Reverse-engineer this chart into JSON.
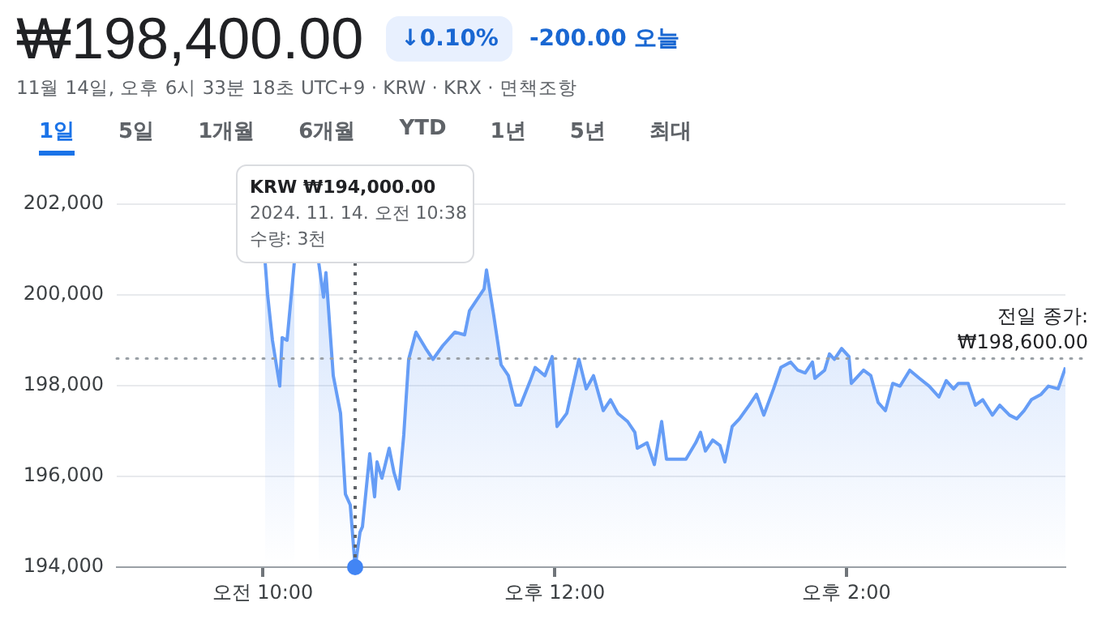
{
  "chart_data": {
    "type": "area",
    "title": "₩198,400.00",
    "subtitle": "11월 14일, 오후 6시 33분 18초 UTC+9 · KRW · KRX · 면책조항",
    "annotations": [
      "↓0.10%",
      "-200.00 오늘",
      "1일",
      "5일",
      "1개월",
      "6개월",
      "YTD",
      "1년",
      "5년",
      "최대",
      {
        "text": "KRW ₩194,000.00\n2024. 11. 14. 오전 10:38\n수량: 3천",
        "x": "2024-11-14T10:38",
        "y": 194000
      }
    ],
    "x": [
      "2024-11-14T10:01",
      "2024-11-14T10:02",
      "2024-11-14T10:04",
      "2024-11-14T10:07",
      "2024-11-14T10:08",
      "2024-11-14T10:10",
      "2024-11-14T10:12",
      "2024-11-14T10:13",
      "2024-11-14T10:18",
      "2024-11-14T10:23",
      "2024-11-14T10:25",
      "2024-11-14T10:26",
      "2024-11-14T10:29",
      "2024-11-14T10:32",
      "2024-11-14T10:34",
      "2024-11-14T10:36",
      "2024-11-14T10:38",
      "2024-11-14T10:40",
      "2024-11-14T10:41",
      "2024-11-14T10:44",
      "2024-11-14T10:46",
      "2024-11-14T10:47",
      "2024-11-14T10:49",
      "2024-11-14T10:52",
      "2024-11-14T10:54",
      "2024-11-14T10:56",
      "2024-11-14T10:58",
      "2024-11-14T11:00",
      "2024-11-14T11:03",
      "2024-11-14T11:07",
      "2024-11-14T11:10",
      "2024-11-14T11:14",
      "2024-11-14T11:19",
      "2024-11-14T11:23",
      "2024-11-14T11:25",
      "2024-11-14T11:28",
      "2024-11-14T11:31",
      "2024-11-14T11:32",
      "2024-11-14T11:35",
      "2024-11-14T11:38",
      "2024-11-14T11:41",
      "2024-11-14T11:44",
      "2024-11-14T11:46",
      "2024-11-14T11:50",
      "2024-11-14T11:52",
      "2024-11-14T11:56",
      "2024-11-14T11:59",
      "2024-11-14T12:01",
      "2024-11-14T12:05",
      "2024-11-14T12:10",
      "2024-11-14T12:13",
      "2024-11-14T12:16",
      "2024-11-14T12:20",
      "2024-11-14T12:23",
      "2024-11-14T12:26",
      "2024-11-14T12:30",
      "2024-11-14T12:33",
      "2024-11-14T12:34",
      "2024-11-14T12:38",
      "2024-11-14T12:41",
      "2024-11-14T12:44",
      "2024-11-14T12:46",
      "2024-11-14T12:50",
      "2024-11-14T12:54",
      "2024-11-14T12:58",
      "2024-11-14T13:00",
      "2024-11-14T13:02",
      "2024-11-14T13:05",
      "2024-11-14T13:08",
      "2024-11-14T13:10",
      "2024-11-14T13:13",
      "2024-11-14T13:16",
      "2024-11-14T13:20",
      "2024-11-14T13:23",
      "2024-11-14T13:26",
      "2024-11-14T13:30",
      "2024-11-14T13:33",
      "2024-11-14T13:37",
      "2024-11-14T13:40",
      "2024-11-14T13:43",
      "2024-11-14T13:46",
      "2024-11-14T13:47",
      "2024-11-14T13:51",
      "2024-11-14T13:53",
      "2024-11-14T13:55",
      "2024-11-14T13:58",
      "2024-11-14T14:01",
      "2024-11-14T14:02",
      "2024-11-14T14:07",
      "2024-11-14T14:10",
      "2024-11-14T14:13",
      "2024-11-14T14:16",
      "2024-11-14T14:19",
      "2024-11-14T14:22",
      "2024-11-14T14:26",
      "2024-11-14T14:30",
      "2024-11-14T14:34",
      "2024-11-14T14:38",
      "2024-11-14T14:41",
      "2024-11-14T14:44",
      "2024-11-14T14:46",
      "2024-11-14T14:50",
      "2024-11-14T14:53",
      "2024-11-14T14:56",
      "2024-11-14T15:00",
      "2024-11-14T15:03",
      "2024-11-14T15:07",
      "2024-11-14T15:10",
      "2024-11-14T15:13",
      "2024-11-14T15:16",
      "2024-11-14T15:20",
      "2024-11-14T15:23",
      "2024-11-14T15:27",
      "2024-11-14T15:30"
    ],
    "series": [
      {
        "color": "#669df6",
        "values": [
          200720,
          200010,
          199000,
          197990,
          199060,
          199000,
          200130,
          200720,
          null,
          200720,
          199950,
          200490,
          198220,
          197390,
          195610,
          195370,
          194000,
          194770,
          194890,
          196500,
          195550,
          196320,
          195960,
          196620,
          196080,
          195720,
          196920,
          198580,
          199180,
          198820,
          198580,
          198880,
          199180,
          199120,
          199650,
          199890,
          200130,
          200550,
          199540,
          198460,
          198220,
          197570,
          197570,
          198110,
          198400,
          198220,
          198640,
          197100,
          197390,
          198580,
          197930,
          198220,
          197450,
          197690,
          197390,
          197210,
          196970,
          196620,
          196740,
          196260,
          197210,
          196380,
          196380,
          196380,
          196740,
          196970,
          196560,
          196800,
          196680,
          196320,
          197100,
          197270,
          197570,
          197810,
          197350,
          197930,
          198400,
          198520,
          198340,
          198280,
          198520,
          198160,
          198340,
          198700,
          198580,
          198820,
          198640,
          198050,
          198340,
          198220,
          197630,
          197450,
          198050,
          197990,
          198340,
          198160,
          197990,
          197750,
          198110,
          197930,
          198050,
          198050,
          197570,
          197690,
          197350,
          197570,
          197350,
          197270,
          197450,
          197690,
          197810,
          197990,
          197930,
          198400
        ]
      }
    ],
    "xlim": [
      "2024-11-14T09:00",
      "2024-11-14T15:30"
    ],
    "ylim": [
      194000,
      202000
    ],
    "xticks": [
      {
        "value": "2024-11-14T10:00",
        "label": "오전 10:00"
      },
      {
        "value": "2024-11-14T12:00",
        "label": "오후 12:00"
      },
      {
        "value": "2024-11-14T14:00",
        "label": "오후 2:00"
      }
    ],
    "yticks": [
      {
        "value": 194000,
        "label": "194,000"
      },
      {
        "value": 196000,
        "label": "196,000"
      },
      {
        "value": 198000,
        "label": "198,000"
      },
      {
        "value": 200000,
        "label": "200,000"
      },
      {
        "value": 202000,
        "label": "202,000"
      }
    ],
    "ref_lines": [
      {
        "axis": "y",
        "value": 198600,
        "label": "전일 종가: ₩198,600.00",
        "color": "#9aa0a6",
        "line_style": "dotted"
      }
    ],
    "grid": "y",
    "legend": false,
    "marker": "none",
    "line_style": "solid"
  }
}
